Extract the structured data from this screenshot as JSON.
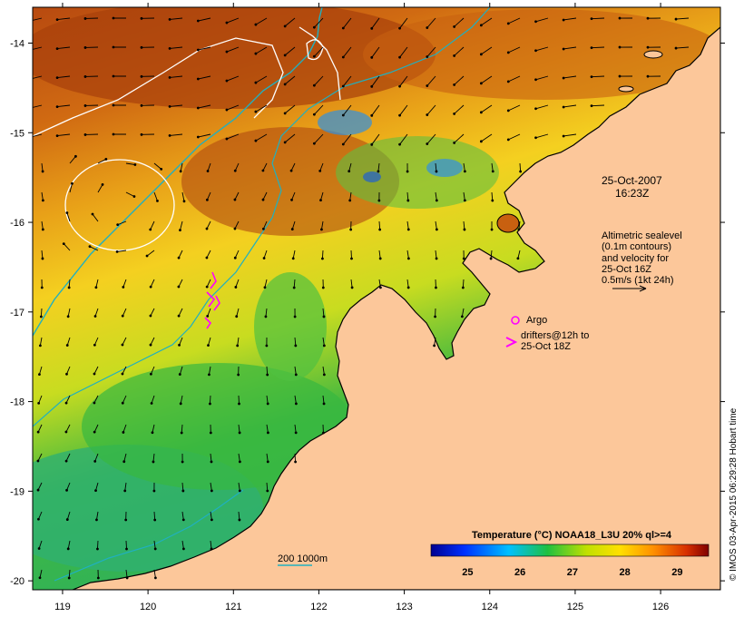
{
  "map": {
    "date_label": "25-Oct-2007",
    "time_label": "16:23Z",
    "altimetry_legend": [
      "Altimetric sealevel",
      "(0.1m contours)",
      "and velocity for",
      "25-Oct 16Z",
      "0.5m/s (1kt 24h)"
    ],
    "argo_label": "Argo",
    "drifter_legend": [
      "drifters@12h to",
      "25-Oct 18Z"
    ],
    "bathy_legend": "200  1000m",
    "credit": "© IMOS 03-Apr-2015 06:29:28 Hobart time",
    "colors": {
      "land": "#fcc79a",
      "sst_warm": "#c85a10",
      "sst_mid": "#f0c020",
      "sst_cool": "#30b040",
      "bathy_contour": "#20b0c0",
      "altimetry_contour": "#ffffff",
      "drifter": "#ff00ff"
    }
  },
  "chart_data": {
    "type": "heatmap",
    "title": "Temperature (°C) NOAA18_L3U 20% ql>=4",
    "x_ticks": [
      "119",
      "120",
      "121",
      "122",
      "123",
      "124",
      "125",
      "126"
    ],
    "y_ticks": [
      "-14",
      "-15",
      "-16",
      "-17",
      "-18",
      "-19",
      "-20"
    ],
    "xlim": [
      118.65,
      126.7
    ],
    "ylim": [
      -20.1,
      -13.6
    ],
    "colorbar": {
      "range": [
        24.3,
        29.6
      ],
      "ticks": [
        "25",
        "26",
        "27",
        "28",
        "29"
      ]
    }
  }
}
